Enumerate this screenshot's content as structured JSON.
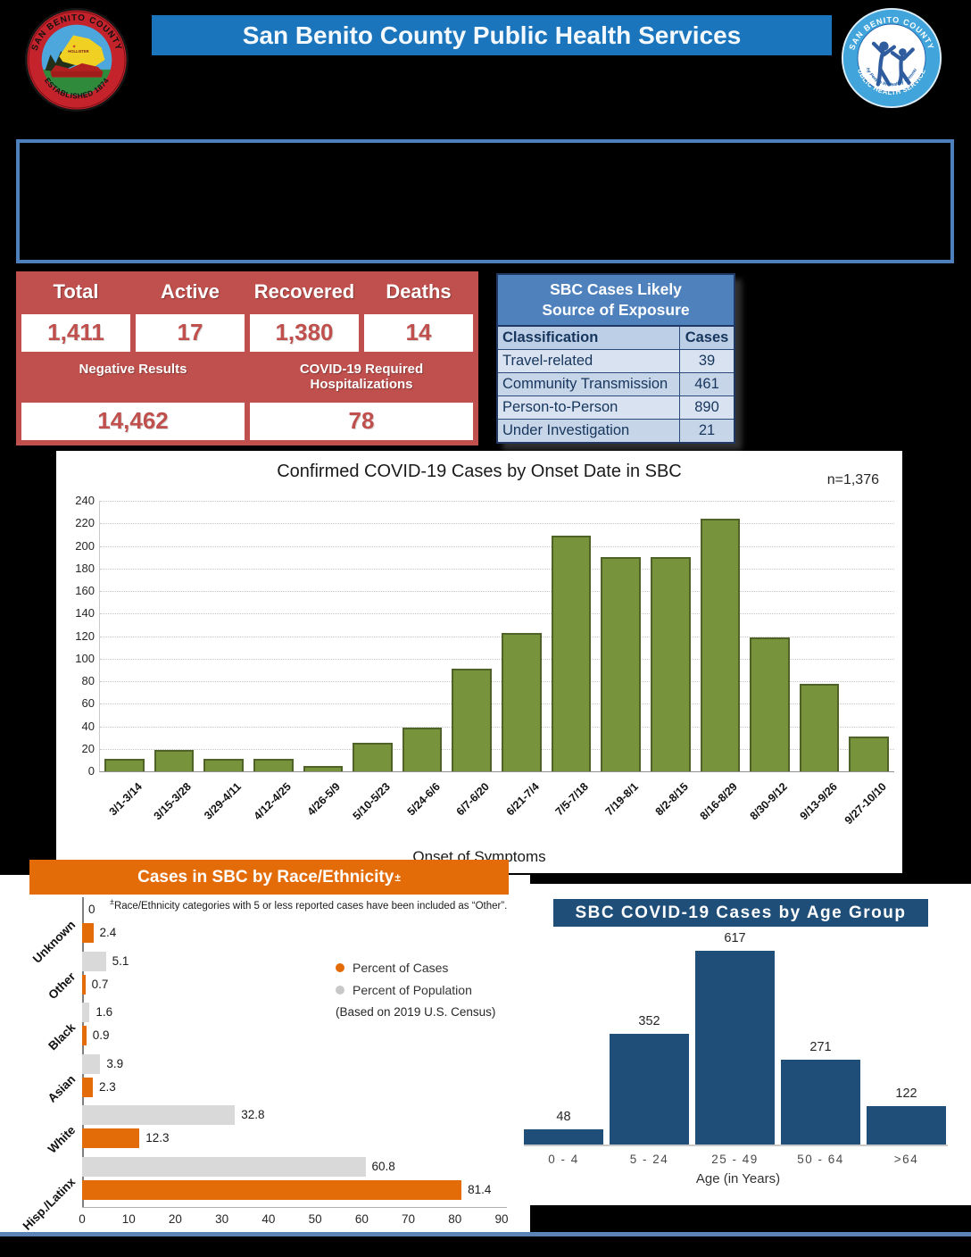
{
  "header": {
    "title": "San Benito County Public Health Services",
    "seal": {
      "top_text": "SAN BENITO COUNTY",
      "bottom_text": "ESTABLISHED 1874",
      "city": "HOLLISTER"
    },
    "logo": {
      "top_text": "SAN BENITO COUNTY",
      "bottom_text": "PUBLIC HEALTH SERVICES",
      "inner_text": "Healthy People In Healthy Communities"
    }
  },
  "stats_table": {
    "headers": [
      "Total",
      "Active",
      "Recovered",
      "Deaths"
    ],
    "values": [
      "1,411",
      "17",
      "1,380",
      "14"
    ],
    "sub_headers": [
      "Negative Results",
      "COVID-19 Required Hospitalizations"
    ],
    "sub_values": [
      "14,462",
      "78"
    ]
  },
  "exposure_table": {
    "title_line1": "SBC Cases Likely",
    "title_line2": "Source of Exposure",
    "col_headers": [
      "Classification",
      "Cases"
    ],
    "rows": [
      {
        "label": "Travel-related",
        "cases": "39"
      },
      {
        "label": "Community Transmission",
        "cases": "461"
      },
      {
        "label": "Person-to-Person",
        "cases": "890"
      },
      {
        "label": "Under Investigation",
        "cases": "21"
      }
    ]
  },
  "chart_data": [
    {
      "type": "bar",
      "title": "Confirmed COVID-19 Cases by Onset Date in SBC",
      "n_label": "n=1,376",
      "xlabel": "Onset of Symptoms",
      "categories": [
        "3/1-3/14",
        "3/15-3/28",
        "3/29-4/11",
        "4/12-4/25",
        "4/26-5/9",
        "5/10-5/23",
        "5/24-6/6",
        "6/7-6/20",
        "6/21-7/4",
        "7/5-7/18",
        "7/19-8/1",
        "8/2-8/15",
        "8/16-8/29",
        "8/30-9/12",
        "9/13-9/26",
        "9/27-10/10"
      ],
      "values": [
        11,
        19,
        11,
        11,
        5,
        25,
        39,
        91,
        123,
        209,
        190,
        190,
        224,
        119,
        78,
        31
      ],
      "ylim": [
        0,
        240
      ],
      "ytick_step": 20,
      "grid": true,
      "bar_color": "#77933C",
      "bar_border": "#4F6228"
    },
    {
      "type": "bar",
      "orientation": "horizontal",
      "title": "Cases in SBC by Race/Ethnicity",
      "title_sup": "±",
      "footnote_sup": "±",
      "footnote": "Race/Ethnicity categories with 5 or less reported cases have been included as “Other”.",
      "census_note": "(Based on 2019 U.S. Census)",
      "categories": [
        "Unknown",
        "Other",
        "Black",
        "Asian",
        "White",
        "Hisp./Latinx"
      ],
      "series": [
        {
          "name": "Percent of Population",
          "values": [
            0,
            5.1,
            1.6,
            3.9,
            32.8,
            60.8
          ],
          "color": "#D9D9D9"
        },
        {
          "name": "Percent of Cases",
          "values": [
            2.4,
            0.7,
            0.9,
            2.3,
            12.3,
            81.4
          ],
          "color": "#E36C09"
        }
      ],
      "xlim": [
        0,
        90
      ],
      "xtick_step": 10,
      "legend_position": "right"
    },
    {
      "type": "bar",
      "title": "SBC COVID-19 Cases by Age Group",
      "xlabel": "Age (in Years)",
      "categories": [
        "0 - 4",
        "5 - 24",
        "25 - 49",
        "50 - 64",
        ">64"
      ],
      "values": [
        48,
        352,
        617,
        271,
        122
      ],
      "bar_color": "#1F4E79"
    }
  ],
  "colors": {
    "header_bar": "#1B75BC",
    "banner_border": "#4E80BD",
    "stats_red": "#C0504D",
    "exposure_blue": "#4F81BD",
    "green_bar": "#77933C",
    "orange": "#E36C09",
    "age_blue": "#1F4E79",
    "bottom_rule": "#5B83B5"
  }
}
